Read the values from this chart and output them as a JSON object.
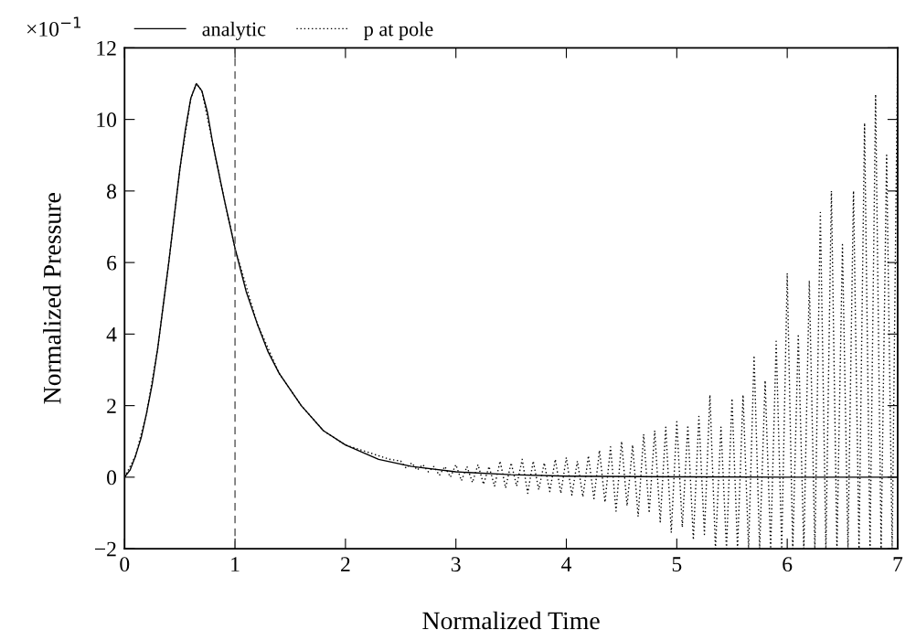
{
  "chart_data": {
    "type": "line",
    "xlabel": "Normalized Time",
    "ylabel": "Normalized Pressure",
    "annotations": [
      "×10$^{−1}$"
    ],
    "xlim": [
      0,
      7
    ],
    "xticks": [
      0,
      1,
      2,
      3,
      4,
      5,
      6,
      7
    ],
    "ylim": [
      -2,
      12
    ],
    "yticks": [
      {
        "value": -2,
        "label": "−2"
      },
      0,
      2,
      4,
      6,
      8,
      10,
      12
    ],
    "grid": false,
    "legend": "top left",
    "marker": "none",
    "ref_lines": [
      {
        "axis": "x",
        "value": 1,
        "label": null,
        "color": "#555555",
        "line_style": "dashed"
      }
    ],
    "series": [
      {
        "name": "analytic",
        "color": "#000000",
        "line_style": "solid",
        "x": [
          0,
          0.05,
          0.1,
          0.15,
          0.2,
          0.25,
          0.3,
          0.35,
          0.4,
          0.45,
          0.5,
          0.55,
          0.6,
          0.65,
          0.7,
          0.75,
          0.8,
          0.9,
          1.0,
          1.1,
          1.2,
          1.3,
          1.4,
          1.6,
          1.8,
          2.0,
          2.3,
          2.6,
          3.0,
          3.5,
          4.0,
          5.0,
          6.0,
          7.0
        ],
        "values": [
          0,
          0.2,
          0.6,
          1.1,
          1.8,
          2.6,
          3.6,
          4.8,
          6.0,
          7.3,
          8.6,
          9.7,
          10.6,
          11.0,
          10.8,
          10.2,
          9.3,
          7.8,
          6.4,
          5.2,
          4.3,
          3.5,
          2.9,
          2.0,
          1.3,
          0.9,
          0.5,
          0.3,
          0.15,
          0.07,
          0.03,
          0.01,
          0,
          0
        ]
      },
      {
        "name": "p at pole",
        "color": "#000000",
        "line_style": "dotted",
        "x": [
          0,
          0.1,
          0.2,
          0.3,
          0.4,
          0.5,
          0.6,
          0.65,
          0.7,
          0.8,
          0.9,
          1.0,
          1.2,
          1.4,
          1.6,
          1.8,
          2.0,
          2.2,
          2.4,
          2.5,
          2.55,
          2.6,
          2.65,
          2.7,
          2.75,
          2.8,
          2.85,
          2.9,
          2.95,
          3.0,
          3.05,
          3.1,
          3.15,
          3.2,
          3.25,
          3.3,
          3.35,
          3.4,
          3.45,
          3.5,
          3.55,
          3.6,
          3.65,
          3.7,
          3.75,
          3.8,
          3.85,
          3.9,
          3.95,
          4.0,
          4.05,
          4.1,
          4.15,
          4.2,
          4.25,
          4.3,
          4.35,
          4.4,
          4.45,
          4.5,
          4.55,
          4.6,
          4.65,
          4.7,
          4.75,
          4.8,
          4.85,
          4.9,
          4.95,
          5.0,
          5.05,
          5.1,
          5.15,
          5.2,
          5.25,
          5.3,
          5.35,
          5.4,
          5.45,
          5.5,
          5.55,
          5.6,
          5.65,
          5.7,
          5.75,
          5.8,
          5.85,
          5.9,
          5.95,
          6.0,
          6.05,
          6.1,
          6.15,
          6.2,
          6.25,
          6.3,
          6.35,
          6.4,
          6.45,
          6.5,
          6.55,
          6.6,
          6.65,
          6.7,
          6.75,
          6.8,
          6.85,
          6.9,
          6.95,
          7.0
        ],
        "values": [
          0,
          0.6,
          1.8,
          3.6,
          6.0,
          8.6,
          10.6,
          11.0,
          10.8,
          9.3,
          7.8,
          6.4,
          4.3,
          2.9,
          2.0,
          1.3,
          0.9,
          0.7,
          0.5,
          0.45,
          0.25,
          0.4,
          0.2,
          0.35,
          0.15,
          0.3,
          0.05,
          0.3,
          0.0,
          0.35,
          -0.1,
          0.3,
          -0.15,
          0.35,
          -0.2,
          0.3,
          -0.25,
          0.45,
          -0.3,
          0.4,
          -0.25,
          0.5,
          -0.45,
          0.45,
          -0.35,
          0.4,
          -0.4,
          0.5,
          -0.45,
          0.55,
          -0.5,
          0.45,
          -0.55,
          0.6,
          -0.6,
          0.75,
          -0.7,
          0.85,
          -0.95,
          1.0,
          -0.8,
          0.9,
          -1.1,
          1.2,
          -1.0,
          1.3,
          -1.25,
          1.4,
          -1.55,
          1.55,
          -1.4,
          1.45,
          -1.75,
          1.7,
          -1.6,
          2.3,
          -2.0,
          1.4,
          -2.0,
          2.2,
          -2.0,
          2.3,
          -2.0,
          3.4,
          -2.0,
          2.7,
          -2.0,
          3.8,
          -2.0,
          5.7,
          -2.0,
          4.0,
          -2.0,
          5.5,
          -2.0,
          7.4,
          -2.0,
          8.0,
          -2.0,
          6.5,
          -2.0,
          8.0,
          -2.0,
          9.9,
          -2.0,
          10.7,
          -2.0,
          9.0,
          -2.0,
          12.0
        ]
      }
    ]
  }
}
